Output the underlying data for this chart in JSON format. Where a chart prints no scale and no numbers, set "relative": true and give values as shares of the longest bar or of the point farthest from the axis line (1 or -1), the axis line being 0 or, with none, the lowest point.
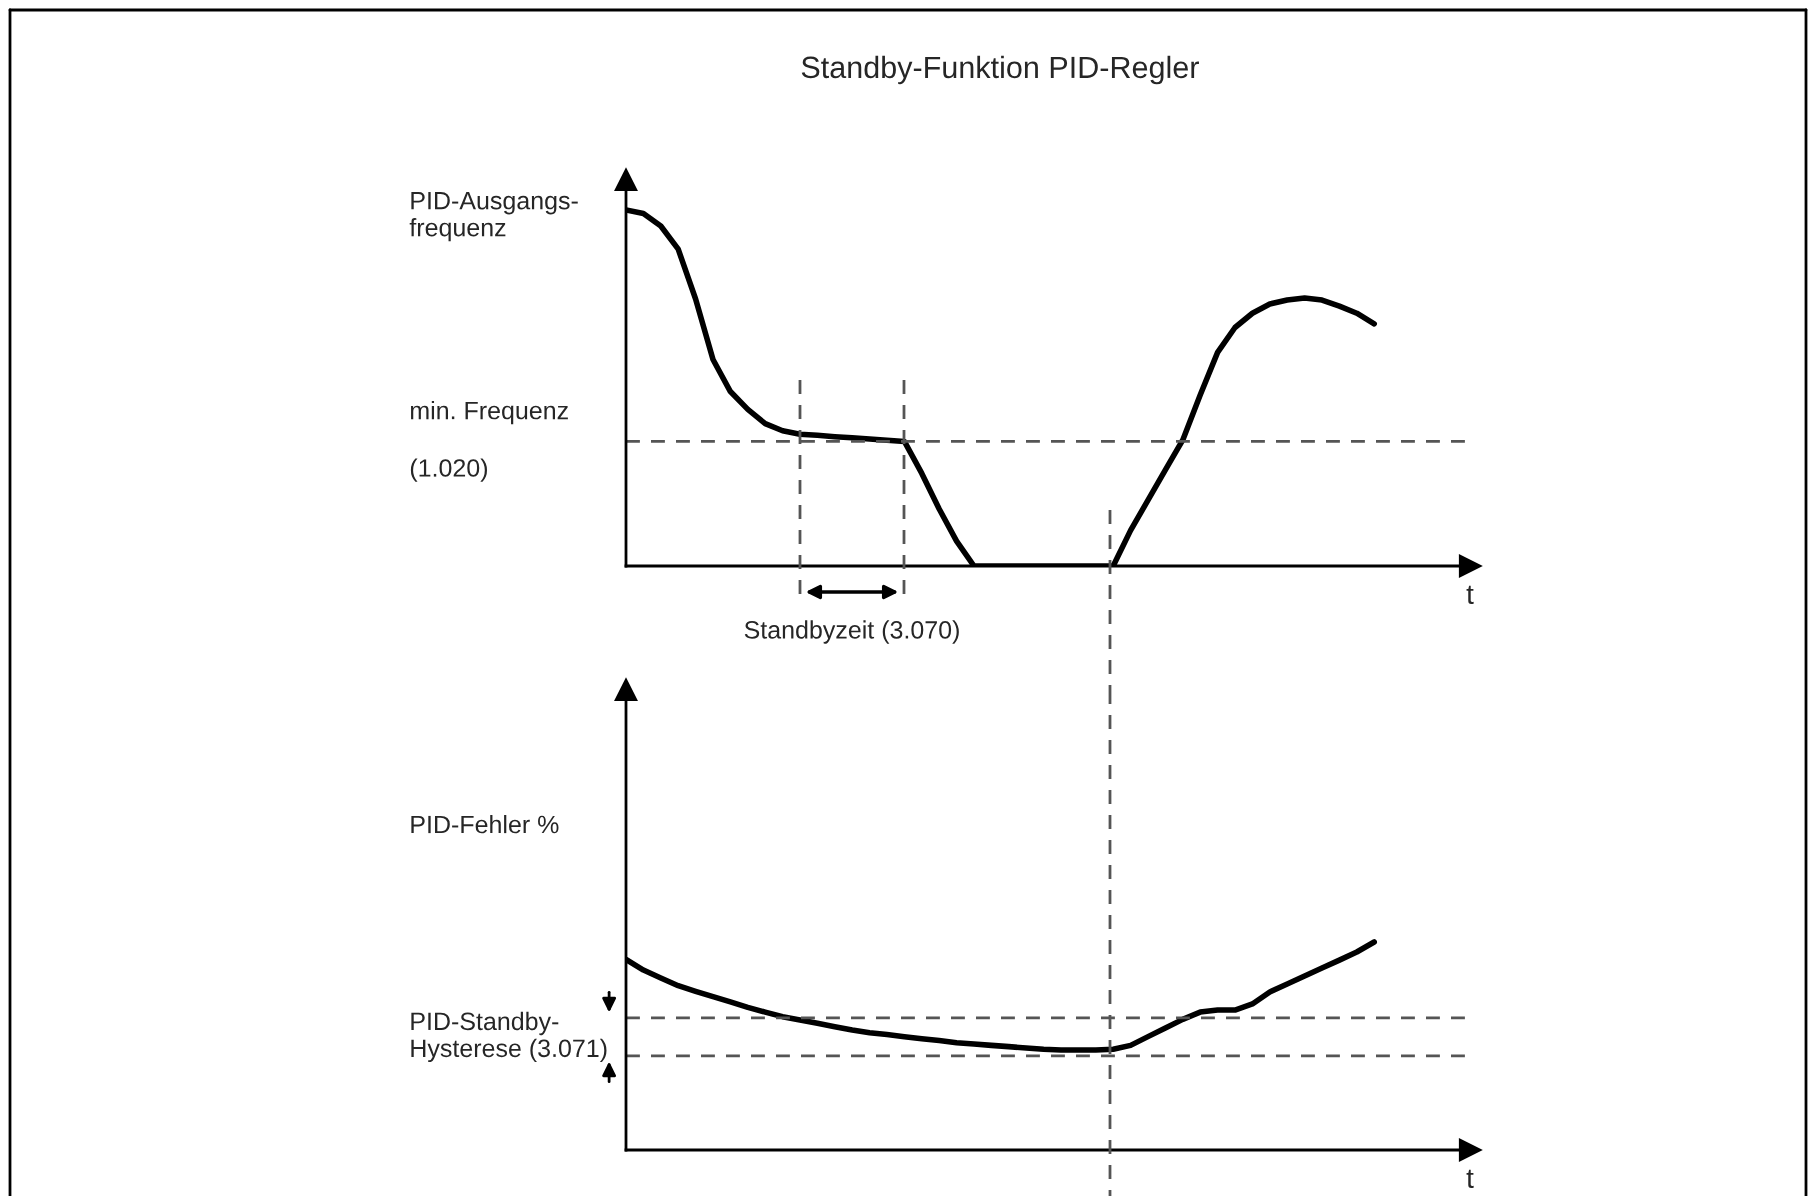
{
  "chart_data": [
    {
      "type": "line",
      "title": "Standby-Funktion PID-Regler",
      "ylabel": "PID-Ausgangs-\nfrequenz",
      "xlabel": "t",
      "relative": true,
      "legend": false,
      "marker": "none",
      "line_style": "solid",
      "categories": [
        null,
        null,
        null,
        null,
        null,
        null,
        null,
        null,
        null,
        null,
        null,
        null,
        null,
        null,
        null,
        null,
        null,
        null,
        null,
        null,
        null,
        null,
        null,
        null,
        null,
        null,
        null,
        null,
        null,
        null,
        null,
        null,
        null,
        null,
        null,
        null,
        null,
        null,
        null,
        null,
        null,
        null,
        null,
        null
      ],
      "series": [
        {
          "color": "#000000",
          "values": [
            1.0,
            0.99,
            0.955,
            0.89,
            0.75,
            0.58,
            0.49,
            0.44,
            0.4,
            0.38,
            0.37,
            0.367,
            0.363,
            0.36,
            0.357,
            0.353,
            0.35,
            0.26,
            0.16,
            0.07,
            0,
            0,
            0,
            0,
            0,
            0,
            0,
            0,
            0,
            0.1,
            0.185,
            0.27,
            0.354,
            0.48,
            0.6,
            0.67,
            0.71,
            0.736,
            0.747,
            0.753,
            0.747,
            0.73,
            0.71,
            0.68
          ]
        }
      ],
      "ref_lines": [
        {
          "axis": "y",
          "value": 0.35,
          "label": "min. Frequenz\n\n(1.020)",
          "line_style": "dashed"
        }
      ],
      "annotations": [
        "Standbyzeit (3.070)"
      ]
    },
    {
      "type": "line",
      "ylabel": "PID-Fehler %",
      "xlabel": "t",
      "relative": true,
      "legend": false,
      "marker": "none",
      "line_style": "solid",
      "categories": [
        null,
        null,
        null,
        null,
        null,
        null,
        null,
        null,
        null,
        null,
        null,
        null,
        null,
        null,
        null,
        null,
        null,
        null,
        null,
        null,
        null,
        null,
        null,
        null,
        null,
        null,
        null,
        null,
        null,
        null,
        null,
        null,
        null,
        null,
        null,
        null,
        null,
        null,
        null,
        null,
        null,
        null,
        null,
        null
      ],
      "series": [
        {
          "color": "#000000",
          "values": [
            0.916,
            0.865,
            0.827,
            0.79,
            0.763,
            0.737,
            0.712,
            0.686,
            0.663,
            0.641,
            0.625,
            0.609,
            0.593,
            0.577,
            0.564,
            0.555,
            0.545,
            0.535,
            0.526,
            0.516,
            0.51,
            0.503,
            0.497,
            0.49,
            0.484,
            0.481,
            0.481,
            0.481,
            0.484,
            0.503,
            0.545,
            0.587,
            0.628,
            0.663,
            0.673,
            0.673,
            0.702,
            0.76,
            0.798,
            0.837,
            0.875,
            0.913,
            0.952,
            1.0
          ]
        }
      ],
      "ref_lines": [
        {
          "axis": "y",
          "value": 0.635,
          "line_style": "dashed"
        },
        {
          "axis": "y",
          "value": 0.452,
          "line_style": "dashed"
        }
      ],
      "annotations": [
        "PID-Standby-\nHysterese (3.071)"
      ]
    }
  ]
}
